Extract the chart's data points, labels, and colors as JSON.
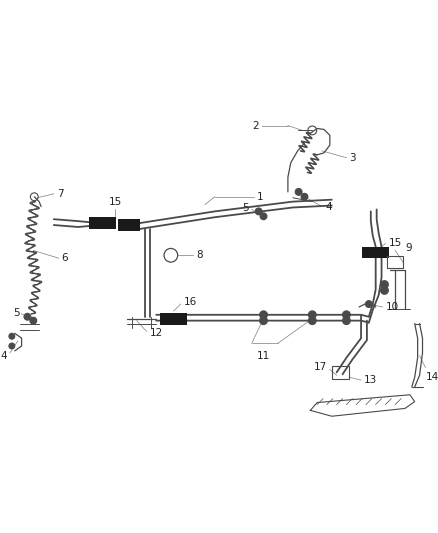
{
  "bg_color": "#ffffff",
  "line_color": "#4a4a4a",
  "label_color": "#222222",
  "black_color": "#1a1a1a",
  "gray_color": "#888888",
  "font_size": 7.5,
  "lw_tube": 1.3,
  "lw_leader": 0.55
}
